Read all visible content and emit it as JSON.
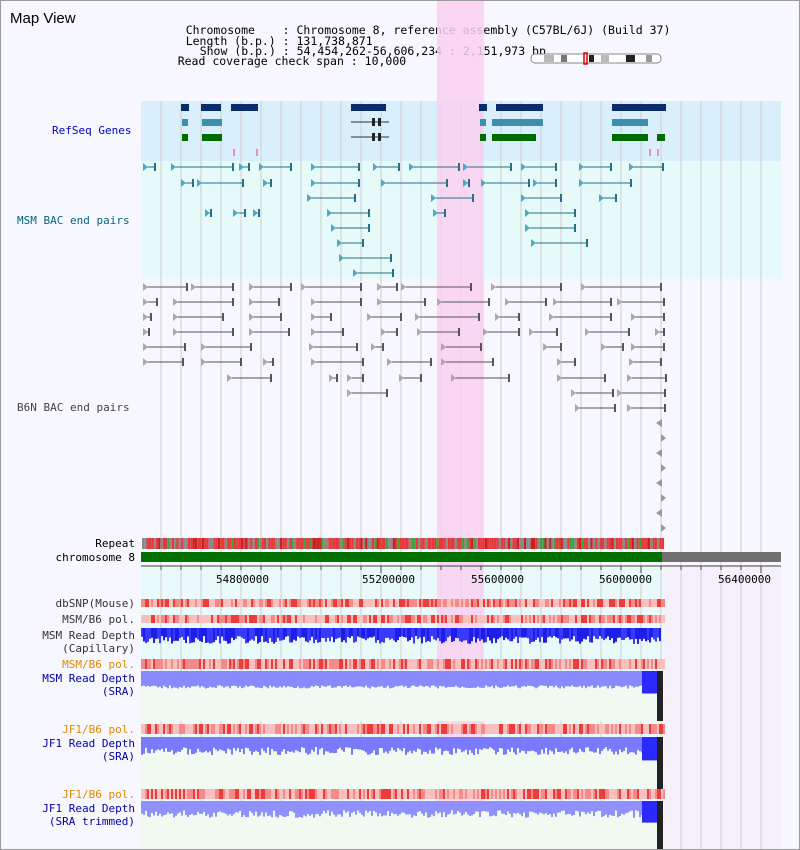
{
  "title": "Map View",
  "header": {
    "chromosome_label": "Chromosome",
    "chromosome_value": "Chromosome 8, reference assembly (C57BL/6J) (Build 37)",
    "length_label": "Length (b.p.)",
    "length_value": "131,738,871",
    "show_label": "Show (b.p.)",
    "show_value": "54,454,262-56,606,234 : 2,151,973 bp",
    "coverage_label": "Read coverage check span",
    "coverage_value": "10,000"
  },
  "tracks": {
    "refseq": "RefSeq Genes",
    "msm_bac": "MSM BAC end pairs",
    "b6n_bac": "B6N BAC end pairs",
    "repeat": "Repeat",
    "chromosome": "chromosome 8"
  },
  "axis": {
    "ticks": [
      "54800000",
      "55200000",
      "55600000",
      "56000000",
      "56400000"
    ]
  },
  "lower_tracks": [
    {
      "line1": "dbSNP(Mouse)",
      "line2": "",
      "color": "#333333"
    },
    {
      "line1": "MSM/B6 pol.",
      "line2": "",
      "color": "#333333"
    },
    {
      "line1": "MSM Read Depth",
      "line2": "(Capillary)",
      "color": "#333333"
    },
    {
      "line1": "MSM/B6 pol.",
      "line2": "",
      "color": "#e08a00"
    },
    {
      "line1": "MSM Read Depth",
      "line2": "(SRA)",
      "color": "#0000aa"
    },
    {
      "line1": "JF1/B6 pol.",
      "line2": "",
      "color": "#e08a00"
    },
    {
      "line1": "JF1 Read Depth",
      "line2": "(SRA)",
      "color": "#0000aa"
    },
    {
      "line1": "JF1/B6 pol.",
      "line2": "",
      "color": "#e08a00"
    },
    {
      "line1": "JF1 Read Depth",
      "line2": "(SRA trimmed)",
      "color": "#0000aa"
    }
  ],
  "colors": {
    "refseq_label": "#0000cc",
    "msm_label": "#006680",
    "b6n_label": "#444444",
    "highlight": "#f9d0ef",
    "chromosome_bar": "#007000",
    "gene_navy": "#0a2c6b",
    "gene_teal": "#3d8fae",
    "gene_green": "#006c00"
  }
}
